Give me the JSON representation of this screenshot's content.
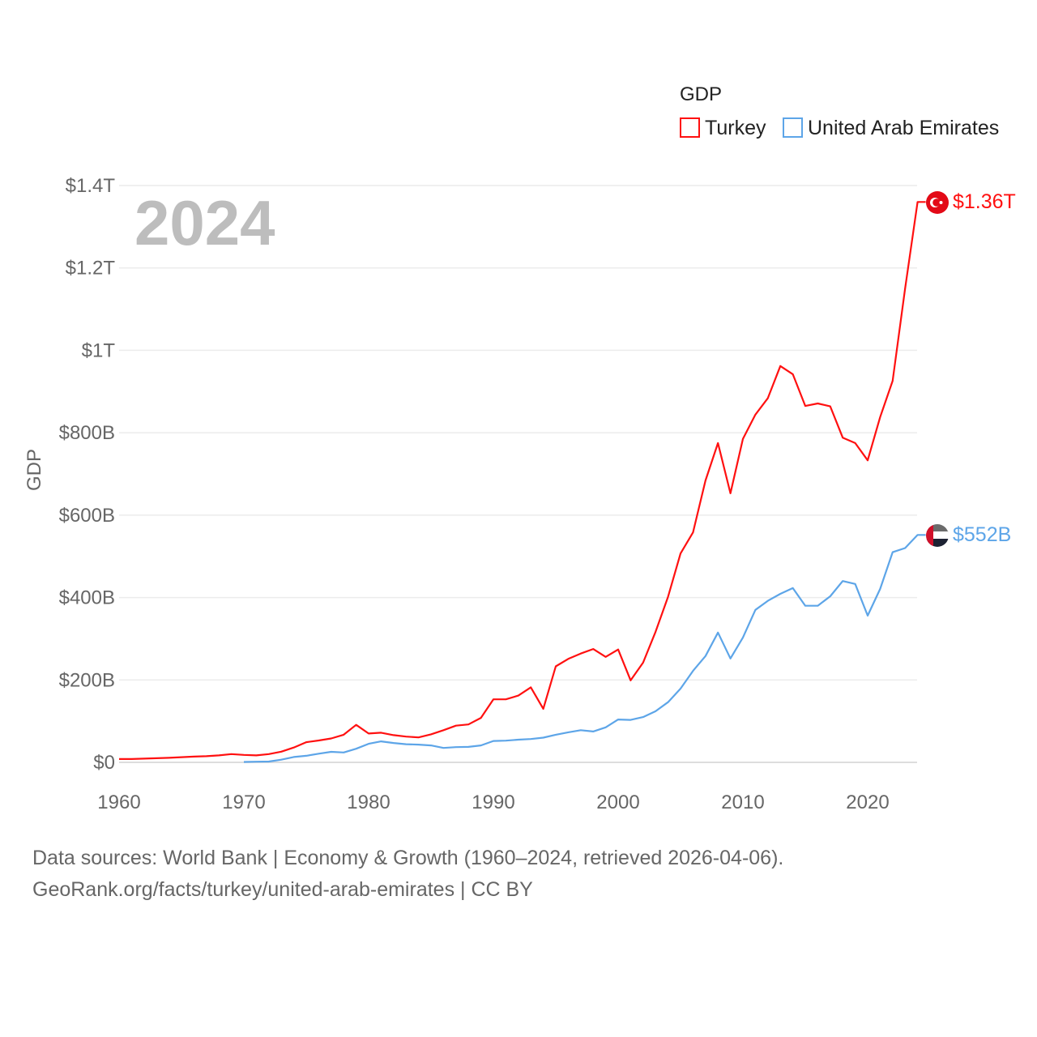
{
  "chart_data": {
    "type": "line",
    "title": "GDP",
    "ylabel": "GDP",
    "xlabel": "",
    "year_label": "2024",
    "xlim": [
      1960,
      2024
    ],
    "ylim": [
      0,
      1400
    ],
    "y_unit": "billions USD",
    "x_ticks": [
      "1960",
      "1970",
      "1980",
      "1990",
      "2000",
      "2010",
      "2020"
    ],
    "y_ticks": [
      {
        "v": 0,
        "label": "$0"
      },
      {
        "v": 200,
        "label": "$200B"
      },
      {
        "v": 400,
        "label": "$400B"
      },
      {
        "v": 600,
        "label": "$600B"
      },
      {
        "v": 800,
        "label": "$800B"
      },
      {
        "v": 1000,
        "label": "$1T"
      },
      {
        "v": 1200,
        "label": "$1.2T"
      },
      {
        "v": 1400,
        "label": "$1.4T"
      }
    ],
    "grid": true,
    "legend_position": "top-right",
    "series": [
      {
        "name": "Turkey",
        "color": "#ff1010",
        "end_label": "$1.36T",
        "flag": "turkey-flag",
        "start": 1960,
        "values": [
          8,
          8,
          9,
          10,
          11,
          12.5,
          14,
          15,
          17,
          20,
          18,
          17,
          20,
          26,
          36,
          49,
          53,
          58,
          67,
          91,
          70,
          72,
          66,
          62.5,
          60.5,
          68,
          78,
          89,
          92,
          108,
          153,
          153,
          162,
          182,
          130,
          233,
          251,
          264,
          275,
          256,
          274,
          199,
          242,
          317,
          402,
          507,
          558,
          684,
          775,
          653,
          785,
          844,
          884,
          962,
          942,
          865,
          871,
          864,
          788,
          775,
          733,
          838,
          926,
          1150,
          1360
        ]
      },
      {
        "name": "United Arab Emirates",
        "color": "#5da5e8",
        "end_label": "$552B",
        "flag": "uae-flag",
        "start": 1970,
        "values": [
          1,
          1.5,
          2,
          6.5,
          13,
          16,
          21,
          25.6,
          24,
          33,
          45,
          51,
          47,
          44,
          43,
          41,
          35,
          37,
          37.5,
          41,
          52,
          52.6,
          55,
          56.6,
          60,
          67,
          73,
          78,
          75,
          85,
          104,
          103,
          110,
          124,
          146,
          179,
          222,
          258,
          315,
          252,
          303,
          370,
          392,
          409,
          423,
          380,
          380,
          403,
          440,
          433,
          356,
          421,
          510,
          520,
          552
        ]
      }
    ]
  },
  "footer": {
    "line1": "Data sources: World Bank | Economy & Growth (1960–2024, retrieved 2026-04-06).",
    "line2": "GeoRank.org/facts/turkey/united-arab-emirates | CC BY"
  }
}
